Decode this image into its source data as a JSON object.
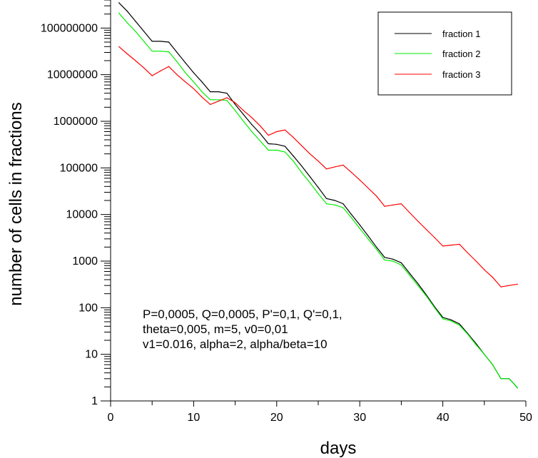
{
  "chart_data": {
    "type": "line",
    "xlabel": "days",
    "ylabel": "number of cells in fractions",
    "xlim": [
      0,
      50
    ],
    "ylim": [
      1,
      400000000
    ],
    "yscale": "log",
    "grid": false,
    "legend_position": "top-right",
    "x_ticks": [
      0,
      10,
      20,
      30,
      40,
      50
    ],
    "y_ticks": [
      1,
      10,
      100,
      1000,
      10000,
      100000,
      1000000,
      10000000,
      100000000
    ],
    "x_tick_labels": [
      "0",
      "10",
      "20",
      "30",
      "40",
      "50"
    ],
    "y_tick_labels": [
      "1",
      "10",
      "100",
      "1000",
      "10000",
      "100000",
      "1000000",
      "10000000",
      "100000000"
    ],
    "annotation": [
      "P=0,0005, Q=0,0005, P'=0,1, Q'=0,1,",
      "theta=0,005, m=5, v0=0,01",
      "v1=0.016, alpha=2, alpha/beta=10"
    ],
    "series": [
      {
        "name": "fraction 1",
        "color": "#000000",
        "x": [
          1,
          2,
          3,
          4,
          5,
          6,
          7,
          8,
          9,
          10,
          11,
          12,
          13,
          14,
          15,
          16,
          17,
          18,
          19,
          20,
          21,
          22,
          23,
          24,
          25,
          26,
          27,
          28,
          29,
          30,
          31,
          32,
          33,
          34,
          35,
          36,
          37,
          38,
          39,
          40,
          41,
          42,
          43,
          44,
          45,
          46,
          47,
          48,
          49
        ],
        "y": [
          350000000,
          230000000,
          140000000,
          85000000,
          52000000,
          52000000,
          50000000,
          30000000,
          18000000,
          11000000,
          7000000,
          4300000,
          4300000,
          4000000,
          2300000,
          1400000,
          850000,
          550000,
          330000,
          320000,
          290000,
          180000,
          110000,
          65000,
          38000,
          22000,
          20000,
          17000,
          10000,
          6000,
          3500,
          2000,
          1200,
          1100,
          920,
          550,
          330,
          190,
          105,
          62,
          55,
          45,
          28,
          17,
          10,
          6,
          3,
          3,
          1.9
        ]
      },
      {
        "name": "fraction 2",
        "color": "#00ee00",
        "x": [
          1,
          2,
          3,
          4,
          5,
          6,
          7,
          8,
          9,
          10,
          11,
          12,
          13,
          14,
          15,
          16,
          17,
          18,
          19,
          20,
          21,
          22,
          23,
          24,
          25,
          26,
          27,
          28,
          29,
          30,
          31,
          32,
          33,
          34,
          35,
          36,
          37,
          38,
          39,
          40,
          41,
          42,
          43,
          44,
          45,
          46,
          47,
          48,
          49
        ],
        "y": [
          210000000,
          130000000,
          85000000,
          52000000,
          32000000,
          32000000,
          31000000,
          19000000,
          11000000,
          7000000,
          4300000,
          2900000,
          2900000,
          2800000,
          1700000,
          1000000,
          600000,
          380000,
          240000,
          240000,
          220000,
          140000,
          80000,
          48000,
          28000,
          17000,
          16000,
          14000,
          8500,
          5000,
          3000,
          1800,
          1050,
          1000,
          820,
          500,
          300,
          180,
          100,
          58,
          52,
          42,
          27,
          16,
          10,
          6,
          3,
          3,
          1.9
        ]
      },
      {
        "name": "fraction 3",
        "color": "#ff0000",
        "x": [
          1,
          2,
          3,
          4,
          5,
          6,
          7,
          8,
          9,
          10,
          11,
          12,
          13,
          14,
          15,
          16,
          17,
          18,
          19,
          20,
          21,
          22,
          23,
          24,
          25,
          26,
          27,
          28,
          29,
          30,
          31,
          32,
          33,
          34,
          35,
          36,
          37,
          38,
          39,
          40,
          41,
          42,
          43,
          44,
          45,
          46,
          47,
          48,
          49
        ],
        "y": [
          40000000,
          28000000,
          20000000,
          14000000,
          9500000,
          12000000,
          15000000,
          10000000,
          7000000,
          5000000,
          3300000,
          2300000,
          2700000,
          3200000,
          2500000,
          1700000,
          1200000,
          800000,
          500000,
          600000,
          650000,
          450000,
          300000,
          200000,
          140000,
          95000,
          105000,
          115000,
          80000,
          55000,
          37000,
          25000,
          15000,
          16000,
          17000,
          11000,
          7200,
          4800,
          3200,
          2100,
          2200,
          2300,
          1500,
          1000,
          650,
          450,
          280,
          300,
          320
        ]
      }
    ]
  }
}
